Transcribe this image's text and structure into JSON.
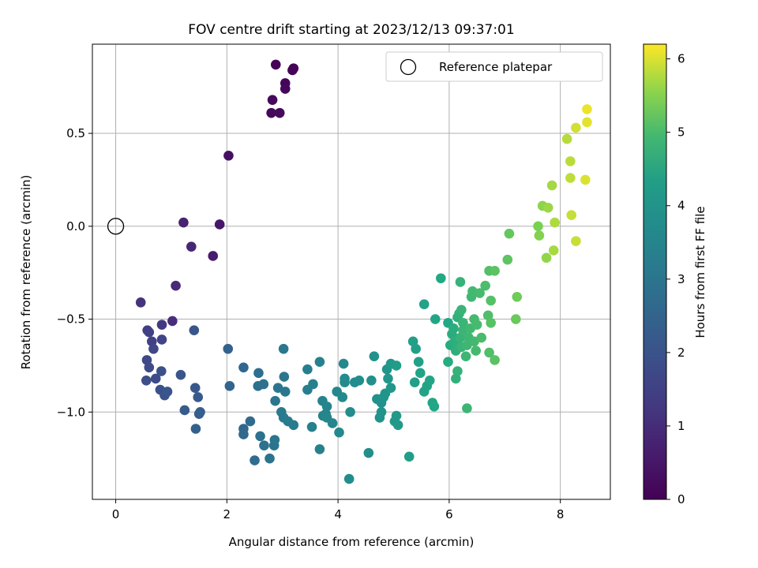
{
  "chart_data": {
    "type": "scatter",
    "title": "FOV centre drift starting at 2023/12/13 09:37:01",
    "xlabel": "Angular distance from reference (arcmin)",
    "ylabel": "Rotation from reference (arcmin)",
    "xlim": [
      -0.42,
      8.9
    ],
    "ylim": [
      -1.47,
      0.98
    ],
    "xticks": [
      0,
      2,
      4,
      6,
      8
    ],
    "yticks": [
      -1.0,
      -0.5,
      0.0,
      0.5
    ],
    "ytick_labels": [
      "−1.0",
      "−0.5",
      "0.0",
      "0.5"
    ],
    "grid": true,
    "legend": {
      "position": "top-right",
      "entries": [
        "Reference platepar"
      ]
    },
    "reference_point": {
      "x": 0.0,
      "y": 0.0,
      "label": "Reference platepar"
    },
    "colorbar": {
      "label": "Hours from first FF file",
      "range": [
        0,
        6.2
      ],
      "ticks": [
        0,
        1,
        2,
        3,
        4,
        5,
        6
      ],
      "colormap": "viridis"
    },
    "points": [
      [
        2.88,
        0.87,
        0.05
      ],
      [
        3.2,
        0.85,
        0.08
      ],
      [
        3.18,
        0.84,
        0.1
      ],
      [
        3.05,
        0.77,
        0.12
      ],
      [
        3.05,
        0.74,
        0.14
      ],
      [
        2.82,
        0.68,
        0.16
      ],
      [
        2.8,
        0.61,
        0.18
      ],
      [
        2.95,
        0.61,
        0.2
      ],
      [
        2.03,
        0.38,
        0.35
      ],
      [
        1.87,
        0.01,
        0.5
      ],
      [
        1.75,
        -0.16,
        0.6
      ],
      [
        1.22,
        0.02,
        0.75
      ],
      [
        1.36,
        -0.11,
        0.85
      ],
      [
        1.08,
        -0.32,
        0.95
      ],
      [
        1.02,
        -0.51,
        1.05
      ],
      [
        0.45,
        -0.41,
        1.15
      ],
      [
        0.83,
        -0.53,
        1.3
      ],
      [
        0.57,
        -0.56,
        1.4
      ],
      [
        0.6,
        -0.57,
        1.45
      ],
      [
        0.65,
        -0.62,
        1.5
      ],
      [
        0.83,
        -0.61,
        1.55
      ],
      [
        0.68,
        -0.66,
        1.6
      ],
      [
        0.56,
        -0.72,
        1.7
      ],
      [
        0.6,
        -0.76,
        1.75
      ],
      [
        0.72,
        -0.82,
        1.8
      ],
      [
        0.55,
        -0.83,
        1.85
      ],
      [
        0.82,
        -0.78,
        1.9
      ],
      [
        0.8,
        -0.88,
        1.95
      ],
      [
        0.88,
        -0.91,
        2.0
      ],
      [
        0.93,
        -0.89,
        2.05
      ],
      [
        1.17,
        -0.8,
        2.05
      ],
      [
        1.41,
        -0.56,
        2.1
      ],
      [
        1.43,
        -0.87,
        2.15
      ],
      [
        1.48,
        -0.92,
        2.2
      ],
      [
        1.24,
        -0.99,
        2.25
      ],
      [
        1.5,
        -1.01,
        2.3
      ],
      [
        1.52,
        -1.0,
        2.35
      ],
      [
        1.44,
        -1.09,
        2.4
      ],
      [
        2.02,
        -0.66,
        2.45
      ],
      [
        2.05,
        -0.86,
        2.5
      ],
      [
        2.3,
        -0.76,
        2.6
      ],
      [
        2.3,
        -1.09,
        2.6
      ],
      [
        2.3,
        -1.12,
        2.65
      ],
      [
        2.42,
        -1.05,
        2.7
      ],
      [
        2.5,
        -1.26,
        2.75
      ],
      [
        2.57,
        -0.79,
        2.8
      ],
      [
        2.56,
        -0.86,
        2.85
      ],
      [
        2.66,
        -0.85,
        2.85
      ],
      [
        2.6,
        -1.13,
        2.9
      ],
      [
        2.67,
        -1.18,
        2.9
      ],
      [
        2.77,
        -1.25,
        2.95
      ],
      [
        2.85,
        -1.18,
        2.95
      ],
      [
        2.86,
        -1.15,
        3.0
      ],
      [
        2.87,
        -0.94,
        3.0
      ],
      [
        2.92,
        -0.87,
        3.05
      ],
      [
        3.03,
        -0.81,
        3.05
      ],
      [
        3.02,
        -0.66,
        3.1
      ],
      [
        3.05,
        -0.89,
        3.1
      ],
      [
        2.98,
        -1.0,
        3.15
      ],
      [
        3.02,
        -1.03,
        3.15
      ],
      [
        3.1,
        -1.05,
        3.2
      ],
      [
        3.2,
        -1.07,
        3.2
      ],
      [
        3.45,
        -0.77,
        3.3
      ],
      [
        3.45,
        -0.88,
        3.3
      ],
      [
        3.55,
        -0.85,
        3.35
      ],
      [
        3.53,
        -1.08,
        3.35
      ],
      [
        3.67,
        -1.2,
        3.4
      ],
      [
        3.67,
        -0.73,
        3.4
      ],
      [
        3.72,
        -0.94,
        3.45
      ],
      [
        3.73,
        -1.02,
        3.45
      ],
      [
        3.8,
        -0.97,
        3.5
      ],
      [
        3.78,
        -1.01,
        3.5
      ],
      [
        3.8,
        -1.03,
        3.55
      ],
      [
        3.9,
        -1.06,
        3.55
      ],
      [
        3.98,
        -0.89,
        3.6
      ],
      [
        4.02,
        -1.11,
        3.6
      ],
      [
        4.08,
        -0.92,
        3.65
      ],
      [
        4.1,
        -0.74,
        3.65
      ],
      [
        4.12,
        -0.82,
        3.7
      ],
      [
        4.12,
        -0.84,
        3.7
      ],
      [
        4.22,
        -1.0,
        3.75
      ],
      [
        4.3,
        -0.84,
        3.75
      ],
      [
        4.2,
        -1.36,
        3.8
      ],
      [
        4.38,
        -0.83,
        3.8
      ],
      [
        4.55,
        -1.22,
        3.85
      ],
      [
        4.6,
        -0.83,
        3.85
      ],
      [
        4.65,
        -0.7,
        3.9
      ],
      [
        4.7,
        -0.93,
        3.9
      ],
      [
        4.75,
        -1.03,
        3.95
      ],
      [
        4.78,
        -0.95,
        3.95
      ],
      [
        4.78,
        -1.0,
        4.0
      ],
      [
        4.82,
        -0.92,
        4.0
      ],
      [
        4.85,
        -0.9,
        4.05
      ],
      [
        4.88,
        -0.77,
        4.05
      ],
      [
        4.9,
        -0.82,
        4.1
      ],
      [
        4.95,
        -0.87,
        4.1
      ],
      [
        4.95,
        -0.74,
        4.15
      ],
      [
        5.02,
        -1.05,
        4.15
      ],
      [
        5.05,
        -1.02,
        4.2
      ],
      [
        5.08,
        -1.07,
        4.2
      ],
      [
        5.05,
        -0.75,
        4.25
      ],
      [
        5.28,
        -1.24,
        4.3
      ],
      [
        5.35,
        -0.62,
        4.35
      ],
      [
        5.38,
        -0.84,
        4.35
      ],
      [
        5.4,
        -0.66,
        4.4
      ],
      [
        5.45,
        -0.73,
        4.4
      ],
      [
        5.48,
        -0.79,
        4.45
      ],
      [
        5.55,
        -0.42,
        4.45
      ],
      [
        5.55,
        -0.89,
        4.5
      ],
      [
        5.6,
        -0.86,
        4.5
      ],
      [
        5.65,
        -0.83,
        4.55
      ],
      [
        5.7,
        -0.95,
        4.55
      ],
      [
        5.73,
        -0.97,
        4.6
      ],
      [
        5.75,
        -0.5,
        4.6
      ],
      [
        5.85,
        -0.28,
        4.65
      ],
      [
        5.98,
        -0.52,
        4.65
      ],
      [
        5.98,
        -0.73,
        4.7
      ],
      [
        6.02,
        -0.64,
        4.7
      ],
      [
        6.05,
        -0.58,
        4.72
      ],
      [
        6.08,
        -0.55,
        4.74
      ],
      [
        6.1,
        -0.62,
        4.76
      ],
      [
        6.12,
        -0.67,
        4.78
      ],
      [
        6.12,
        -0.82,
        4.8
      ],
      [
        6.15,
        -0.49,
        4.8
      ],
      [
        6.15,
        -0.78,
        4.82
      ],
      [
        6.18,
        -0.47,
        4.82
      ],
      [
        6.2,
        -0.6,
        4.84
      ],
      [
        6.2,
        -0.3,
        4.84
      ],
      [
        6.22,
        -0.65,
        4.86
      ],
      [
        6.22,
        -0.45,
        4.86
      ],
      [
        6.25,
        -0.52,
        4.88
      ],
      [
        6.25,
        -0.56,
        4.88
      ],
      [
        6.3,
        -0.7,
        4.9
      ],
      [
        6.32,
        -0.98,
        4.9
      ],
      [
        6.32,
        -0.64,
        4.92
      ],
      [
        6.35,
        -0.6,
        4.92
      ],
      [
        6.38,
        -0.55,
        4.94
      ],
      [
        6.4,
        -0.38,
        4.94
      ],
      [
        6.42,
        -0.35,
        4.96
      ],
      [
        6.45,
        -0.62,
        4.96
      ],
      [
        6.45,
        -0.5,
        4.98
      ],
      [
        6.48,
        -0.67,
        4.98
      ],
      [
        6.5,
        -0.53,
        5.0
      ],
      [
        6.55,
        -0.36,
        5.0
      ],
      [
        6.58,
        -0.6,
        5.02
      ],
      [
        6.65,
        -0.32,
        5.04
      ],
      [
        6.7,
        -0.48,
        5.06
      ],
      [
        6.72,
        -0.68,
        5.08
      ],
      [
        6.72,
        -0.24,
        5.1
      ],
      [
        6.75,
        -0.4,
        5.12
      ],
      [
        6.75,
        -0.52,
        5.14
      ],
      [
        6.82,
        -0.72,
        5.16
      ],
      [
        6.82,
        -0.24,
        5.18
      ],
      [
        7.05,
        -0.18,
        5.2
      ],
      [
        7.08,
        -0.04,
        5.25
      ],
      [
        7.2,
        -0.5,
        5.3
      ],
      [
        7.22,
        -0.38,
        5.35
      ],
      [
        7.6,
        0.0,
        5.45
      ],
      [
        7.62,
        -0.05,
        5.5
      ],
      [
        7.68,
        0.11,
        5.55
      ],
      [
        7.75,
        -0.17,
        5.6
      ],
      [
        7.78,
        0.1,
        5.65
      ],
      [
        7.85,
        0.22,
        5.7
      ],
      [
        7.88,
        -0.13,
        5.72
      ],
      [
        7.9,
        0.02,
        5.75
      ],
      [
        8.12,
        0.47,
        5.8
      ],
      [
        8.18,
        0.35,
        5.82
      ],
      [
        8.18,
        0.26,
        5.85
      ],
      [
        8.2,
        0.06,
        5.88
      ],
      [
        8.28,
        -0.08,
        5.9
      ],
      [
        8.28,
        0.53,
        5.95
      ],
      [
        8.45,
        0.25,
        6.0
      ],
      [
        8.48,
        0.56,
        6.05
      ],
      [
        8.48,
        0.63,
        6.1
      ]
    ]
  }
}
